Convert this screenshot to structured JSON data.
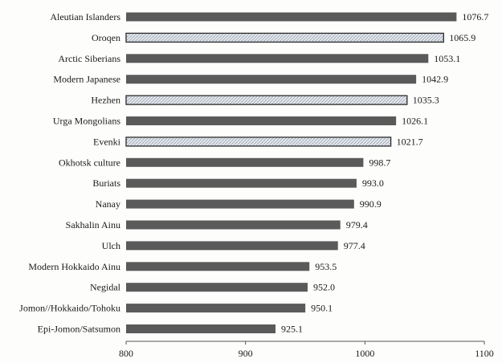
{
  "chart_data": {
    "type": "bar",
    "orientation": "horizontal",
    "categories": [
      "Aleutian Islanders",
      "Oroqen",
      "Arctic Siberians",
      "Modern Japanese",
      "Hezhen",
      "Urga Mongolians",
      "Evenki",
      "Okhotsk culture",
      "Buriats",
      "Nanay",
      "Sakhalin Ainu",
      "Ulch",
      "Modern Hokkaido Ainu",
      "Negidal",
      "Jomon//Hokkaido/Tohoku",
      "Epi-Jomon/Satsumon"
    ],
    "values": [
      1076.7,
      1065.9,
      1053.1,
      1042.9,
      1035.3,
      1026.1,
      1021.7,
      998.7,
      993.0,
      990.9,
      979.4,
      977.4,
      953.5,
      952.0,
      950.1,
      925.1
    ],
    "value_labels": [
      "1076.7",
      "1065.9",
      "1053.1",
      "1042.9",
      "1035.3",
      "1026.1",
      "1021.7",
      "998.7",
      "993.0",
      "990.9",
      "979.4",
      "977.4",
      "953.5",
      "952.0",
      "950.1",
      "925.1"
    ],
    "bar_styles": [
      "solid",
      "hatched",
      "solid",
      "solid",
      "hatched",
      "solid",
      "hatched",
      "solid",
      "solid",
      "solid",
      "solid",
      "solid",
      "solid",
      "solid",
      "solid",
      "solid"
    ],
    "xlim": [
      800,
      1100
    ],
    "x_ticks": [
      "800",
      "900",
      "1000",
      "1100"
    ],
    "title": "",
    "xlabel": "",
    "ylabel": "",
    "grid": false,
    "legend": "none",
    "colors": {
      "solid_bar": "#5a5a5a",
      "hatched_bar_fill": "#e4e8ee",
      "hatched_bar_stroke": "#2a2a2a",
      "axis": "#555555"
    }
  }
}
